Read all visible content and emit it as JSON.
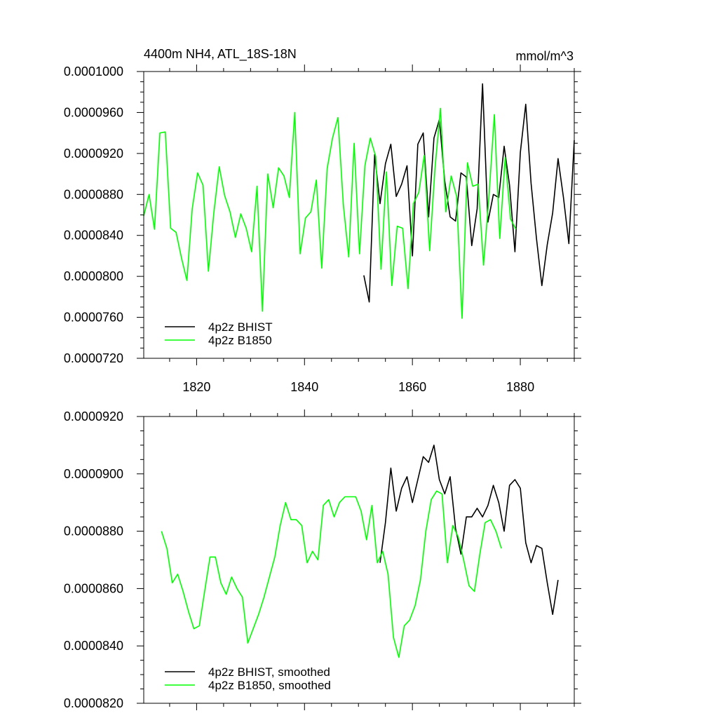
{
  "chart_data": [
    {
      "type": "line",
      "title": "4400m NH4, ATL_18S-18N",
      "units": "mmol/m^3",
      "xlabel": "",
      "ylabel": "",
      "xlim": [
        1810.2,
        1890
      ],
      "ylim": [
        7.2e-05,
        0.0001
      ],
      "x_ticks": [
        1820,
        1840,
        1860,
        1880
      ],
      "x_tick_labels": [
        "1820",
        "1840",
        "1860",
        "1880"
      ],
      "y_ticks": [
        7.2e-05,
        7.6e-05,
        8e-05,
        8.4e-05,
        8.8e-05,
        9.2e-05,
        9.6e-05,
        0.0001
      ],
      "y_tick_labels": [
        "0.0000720",
        "0.0000760",
        "0.0000800",
        "0.0000840",
        "0.0000880",
        "0.0000920",
        "0.0000960",
        "0.0001000"
      ],
      "legend_position": "bottom-left",
      "series": [
        {
          "name": "4p2z BHIST",
          "color": "#000000",
          "x_start": 1851,
          "values": [
            8.01e-05,
            7.75e-05,
            9.19e-05,
            8.71e-05,
            9.1e-05,
            9.29e-05,
            8.78e-05,
            8.9e-05,
            9.08e-05,
            8.2e-05,
            9.29e-05,
            9.4e-05,
            8.58e-05,
            9.35e-05,
            9.53e-05,
            8.93e-05,
            8.58e-05,
            8.54e-05,
            9.01e-05,
            8.97e-05,
            8.3e-05,
            8.66e-05,
            9.88e-05,
            8.53e-05,
            8.8e-05,
            8.77e-05,
            9.27e-05,
            8.89e-05,
            8.24e-05,
            9.21e-05,
            9.68e-05,
            8.91e-05,
            8.37e-05,
            7.91e-05,
            8.31e-05,
            8.62e-05,
            9.15e-05,
            8.77e-05,
            8.32e-05,
            9.33e-05
          ]
        },
        {
          "name": "4p2z B1850",
          "color": "#00ff00",
          "x_start": 1810.2,
          "values": [
            8.59e-05,
            8.8e-05,
            8.46e-05,
            9.4e-05,
            9.41e-05,
            8.47e-05,
            8.43e-05,
            8.18e-05,
            7.96e-05,
            8.66e-05,
            9.01e-05,
            8.89e-05,
            8.05e-05,
            8.62e-05,
            9.07e-05,
            8.79e-05,
            8.63e-05,
            8.38e-05,
            8.61e-05,
            8.47e-05,
            8.24e-05,
            8.88e-05,
            7.66e-05,
            9e-05,
            8.67e-05,
            9.06e-05,
            8.98e-05,
            8.77e-05,
            9.6e-05,
            8.22e-05,
            8.57e-05,
            8.63e-05,
            8.94e-05,
            8.08e-05,
            9.05e-05,
            9.35e-05,
            9.55e-05,
            8.7e-05,
            8.19e-05,
            9.3e-05,
            8.22e-05,
            9.08e-05,
            9.35e-05,
            9.17e-05,
            8.07e-05,
            9.02e-05,
            7.91e-05,
            8.49e-05,
            8.47e-05,
            7.88e-05,
            8.71e-05,
            8.82e-05,
            9.18e-05,
            8.25e-05,
            9.06e-05,
            9.64e-05,
            8.63e-05,
            8.98e-05,
            8.78e-05,
            7.59e-05,
            9.11e-05,
            8.88e-05,
            8.9e-05,
            8.11e-05,
            8.78e-05,
            9.58e-05,
            8.37e-05,
            9.16e-05,
            8.56e-05,
            8.46e-05
          ]
        }
      ]
    },
    {
      "type": "line",
      "title": "",
      "units": "",
      "xlabel": "",
      "ylabel": "",
      "xlim": [
        1810.2,
        1890
      ],
      "ylim": [
        8.2e-05,
        9.2e-05
      ],
      "x_ticks": [
        1820,
        1840,
        1860,
        1880
      ],
      "x_tick_labels": [],
      "y_ticks": [
        8.2e-05,
        8.4e-05,
        8.6e-05,
        8.8e-05,
        9e-05,
        9.2e-05
      ],
      "y_tick_labels": [
        "0.0000820",
        "0.0000840",
        "0.0000860",
        "0.0000880",
        "0.0000900",
        "0.0000920"
      ],
      "legend_position": "bottom-left",
      "series": [
        {
          "name": "4p2z BHIST, smoothed",
          "color": "#000000",
          "x_start": 1854,
          "values": [
            8.69e-05,
            8.83e-05,
            9.02e-05,
            8.87e-05,
            8.95e-05,
            8.99e-05,
            8.9e-05,
            8.98e-05,
            9.06e-05,
            9.04e-05,
            9.1e-05,
            8.98e-05,
            8.93e-05,
            8.99e-05,
            8.81e-05,
            8.72e-05,
            8.85e-05,
            8.85e-05,
            8.88e-05,
            8.85e-05,
            8.89e-05,
            8.96e-05,
            8.9e-05,
            8.8e-05,
            8.96e-05,
            8.98e-05,
            8.95e-05,
            8.76e-05,
            8.69e-05,
            8.75e-05,
            8.74e-05,
            8.62e-05,
            8.51e-05,
            8.63e-05
          ]
        },
        {
          "name": "4p2z B1850, smoothed",
          "color": "#00ff00",
          "x_start": 1813.5,
          "values": [
            8.8e-05,
            8.74e-05,
            8.62e-05,
            8.65e-05,
            8.59e-05,
            8.52e-05,
            8.46e-05,
            8.47e-05,
            8.59e-05,
            8.71e-05,
            8.71e-05,
            8.62e-05,
            8.58e-05,
            8.64e-05,
            8.6e-05,
            8.57e-05,
            8.41e-05,
            8.46e-05,
            8.51e-05,
            8.57e-05,
            8.64e-05,
            8.71e-05,
            8.82e-05,
            8.9e-05,
            8.84e-05,
            8.84e-05,
            8.82e-05,
            8.69e-05,
            8.73e-05,
            8.7e-05,
            8.89e-05,
            8.91e-05,
            8.85e-05,
            8.9e-05,
            8.92e-05,
            8.92e-05,
            8.92e-05,
            8.87e-05,
            8.77e-05,
            8.89e-05,
            8.69e-05,
            8.73e-05,
            8.65e-05,
            8.43e-05,
            8.36e-05,
            8.47e-05,
            8.49e-05,
            8.54e-05,
            8.63e-05,
            8.8e-05,
            8.91e-05,
            8.94e-05,
            8.93e-05,
            8.69e-05,
            8.82e-05,
            8.78e-05,
            8.7e-05,
            8.61e-05,
            8.59e-05,
            8.72e-05,
            8.83e-05,
            8.84e-05,
            8.8e-05,
            8.74e-05
          ]
        }
      ]
    }
  ]
}
